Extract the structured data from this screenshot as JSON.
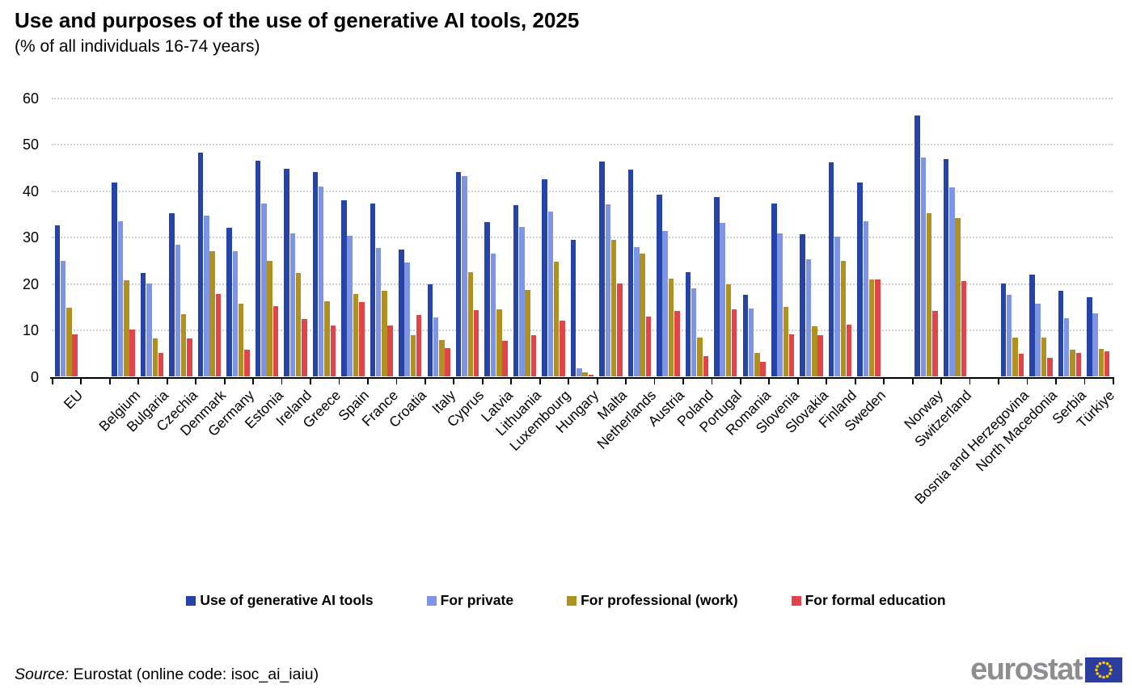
{
  "header": {
    "title": "Use and purposes of the use of generative AI tools, 2025",
    "subtitle": "(% of all individuals 16-74 years)"
  },
  "footer": {
    "source_label": "Source:",
    "source_rest": "Eurostat (online code: isoc_ai_iaiu)",
    "logo_text": "eurostat"
  },
  "colors": {
    "dark_blue": "#2644A7",
    "light_blue": "#7D95E4",
    "gold": "#B09120",
    "red": "#E2444A",
    "grid": "#CFCFCF",
    "axis": "#000000",
    "logo_grey": "#8D8D92",
    "flag_blue": "#2B3E9E",
    "star_yellow": "#FFCC00"
  },
  "chart_data": {
    "type": "bar",
    "title": "Use and purposes of the use of generative AI tools, 2025",
    "subtitle": "(% of all individuals 16-74 years)",
    "xlabel": "",
    "ylabel": "% of all individuals 16-74 years",
    "ylim": [
      0,
      60
    ],
    "yticks": [
      0,
      10,
      20,
      30,
      40,
      50,
      60
    ],
    "grid": "horizontal dotted",
    "legend_position": "bottom",
    "gap_after": [
      "EU",
      "Sweden",
      "Switzerland"
    ],
    "categories": [
      "EU",
      "Belgium",
      "Bulgaria",
      "Czechia",
      "Denmark",
      "Germany",
      "Estonia",
      "Ireland",
      "Greece",
      "Spain",
      "France",
      "Croatia",
      "Italy",
      "Cyprus",
      "Latvia",
      "Lithuania",
      "Luxembourg",
      "Hungary",
      "Malta",
      "Netherlands",
      "Austria",
      "Poland",
      "Portugal",
      "Romania",
      "Slovenia",
      "Slovakia",
      "Finland",
      "Sweden",
      "Norway",
      "Switzerland",
      "Bosnia and Herzegovina",
      "North Macedonia",
      "Serbia",
      "Türkiye"
    ],
    "series": [
      {
        "name": "Use of generative AI tools",
        "color": "#2644A7",
        "values": [
          32.7,
          41.9,
          22.4,
          35.3,
          48.4,
          32.2,
          46.6,
          44.8,
          44.1,
          38.0,
          37.4,
          27.4,
          20.0,
          44.2,
          33.4,
          37.0,
          42.6,
          29.5,
          46.5,
          44.7,
          39.3,
          22.6,
          38.7,
          17.6,
          37.4,
          30.7,
          46.2,
          41.9,
          56.3,
          47.0,
          20.2,
          22.0,
          18.5,
          17.2
        ]
      },
      {
        "name": "For private",
        "color": "#7D95E4",
        "values": [
          25.0,
          33.5,
          20.1,
          28.5,
          34.8,
          27.1,
          37.4,
          31.0,
          41.0,
          30.4,
          27.7,
          24.6,
          12.8,
          43.2,
          26.5,
          32.3,
          35.6,
          1.8,
          37.2,
          27.9,
          31.5,
          19.1,
          33.2,
          14.8,
          31.0,
          25.4,
          30.2,
          33.6,
          47.2,
          40.8,
          17.7,
          15.7,
          12.6,
          13.7
        ]
      },
      {
        "name": "For professional (work)",
        "color": "#B09120",
        "values": [
          14.9,
          20.8,
          8.3,
          13.5,
          27.1,
          15.7,
          25.0,
          22.4,
          16.2,
          17.9,
          18.5,
          9.0,
          8.0,
          22.6,
          14.6,
          18.7,
          24.9,
          1.0,
          29.5,
          26.5,
          21.2,
          8.4,
          19.9,
          5.2,
          15.1,
          10.9,
          25.0,
          20.9,
          35.3,
          34.2,
          8.5,
          8.5,
          5.8,
          6.0
        ]
      },
      {
        "name": "For formal education",
        "color": "#E2444A",
        "values": [
          9.2,
          10.2,
          5.1,
          8.3,
          17.8,
          5.9,
          15.3,
          12.4,
          11.0,
          16.1,
          11.0,
          13.3,
          6.2,
          14.3,
          7.8,
          9.0,
          12.1,
          0.5,
          20.1,
          13.0,
          14.2,
          4.5,
          14.5,
          3.2,
          9.2,
          9.0,
          11.3,
          20.9,
          14.2,
          20.6,
          4.9,
          4.1,
          5.1,
          5.5
        ]
      }
    ]
  }
}
